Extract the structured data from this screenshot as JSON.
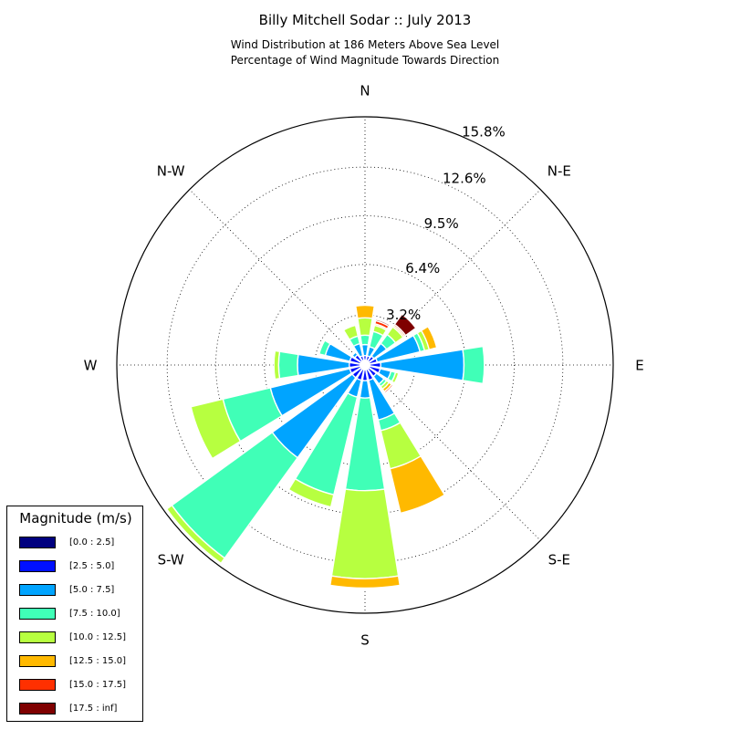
{
  "chart_data": {
    "type": "windrose",
    "title": "Billy Mitchell Sodar :: July 2013",
    "subtitle_lines": [
      "Wind Distribution at 186 Meters Above Sea Level",
      "Percentage of Wind Magnitude Towards Direction"
    ],
    "directions": [
      {
        "angle": 0,
        "label": "N"
      },
      {
        "angle": 45,
        "label": "N-E"
      },
      {
        "angle": 90,
        "label": "E"
      },
      {
        "angle": 135,
        "label": "S-E"
      },
      {
        "angle": 180,
        "label": "S"
      },
      {
        "angle": 225,
        "label": "S-W"
      },
      {
        "angle": 270,
        "label": "W"
      },
      {
        "angle": 315,
        "label": "N-W"
      }
    ],
    "radial_ticks": [
      {
        "value": 3.2,
        "label": "3.2%"
      },
      {
        "value": 6.4,
        "label": "6.4%"
      },
      {
        "value": 9.5,
        "label": "9.5%"
      },
      {
        "value": 12.6,
        "label": "12.6%"
      },
      {
        "value": 15.8,
        "label": "15.8%"
      }
    ],
    "r_max": 15.8,
    "grid": true,
    "legend_title": "Magnitude (m/s)",
    "legend_location": "lower-left",
    "bins": [
      {
        "label": "[0.0 : 2.5]",
        "color": "#00007f"
      },
      {
        "label": "[2.5 : 5.0]",
        "color": "#0010ff"
      },
      {
        "label": "[5.0 : 7.5]",
        "color": "#00a4ff"
      },
      {
        "label": "[7.5 : 10.0]",
        "color": "#40ffb7"
      },
      {
        "label": "[10.0 : 12.5]",
        "color": "#b7ff40"
      },
      {
        "label": "[12.5 : 15.0]",
        "color": "#ffb900"
      },
      {
        "label": "[15.0 : 17.5]",
        "color": "#ff3000"
      },
      {
        "label": "[17.5 : inf]",
        "color": "#7f0000"
      }
    ],
    "sector_width_deg": 18,
    "sectors": [
      {
        "direction_deg": 0,
        "cumulative": [
          0.3,
          0.6,
          1.3,
          1.9,
          3.0,
          3.8
        ]
      },
      {
        "direction_deg": 22.5,
        "cumulative": [
          0.3,
          0.6,
          1.2,
          2.2,
          2.6,
          2.7,
          2.9,
          3.0
        ]
      },
      {
        "direction_deg": 45,
        "cumulative": [
          0.3,
          0.7,
          1.7,
          2.4,
          3.0,
          3.1,
          3.2,
          4.0
        ]
      },
      {
        "direction_deg": 67.5,
        "cumulative": [
          0.3,
          0.8,
          3.6,
          3.9,
          4.2,
          4.7
        ]
      },
      {
        "direction_deg": 90,
        "cumulative": [
          0.3,
          1.0,
          6.3,
          7.6
        ]
      },
      {
        "direction_deg": 112.5,
        "cumulative": [
          0.3,
          1.0,
          1.7,
          2.0,
          2.2
        ]
      },
      {
        "direction_deg": 135,
        "cumulative": [
          0.3,
          0.9,
          1.5,
          1.7,
          1.9,
          2.1,
          2.2
        ]
      },
      {
        "direction_deg": 157.5,
        "cumulative": [
          0.3,
          1.0,
          3.6,
          4.3,
          6.8,
          9.7
        ]
      },
      {
        "direction_deg": 180,
        "cumulative": [
          0.3,
          1.0,
          2.1,
          8.0,
          13.6,
          14.2
        ]
      },
      {
        "direction_deg": 202.5,
        "cumulative": [
          0.3,
          1.0,
          2.1,
          8.5,
          9.3
        ]
      },
      {
        "direction_deg": 225,
        "cumulative": [
          0.3,
          1.0,
          7.3,
          15.2,
          15.6
        ]
      },
      {
        "direction_deg": 247.5,
        "cumulative": [
          0.3,
          1.0,
          6.2,
          9.3,
          11.4
        ]
      },
      {
        "direction_deg": 270,
        "cumulative": [
          0.3,
          1.0,
          4.3,
          5.5,
          5.8
        ]
      },
      {
        "direction_deg": 292.5,
        "cumulative": [
          0.3,
          1.0,
          2.6,
          3.0
        ]
      },
      {
        "direction_deg": 315,
        "cumulative": [
          0.3,
          0.8,
          1.0
        ]
      },
      {
        "direction_deg": 337.5,
        "cumulative": [
          0.3,
          0.6,
          1.4,
          1.9,
          2.6
        ]
      }
    ]
  }
}
